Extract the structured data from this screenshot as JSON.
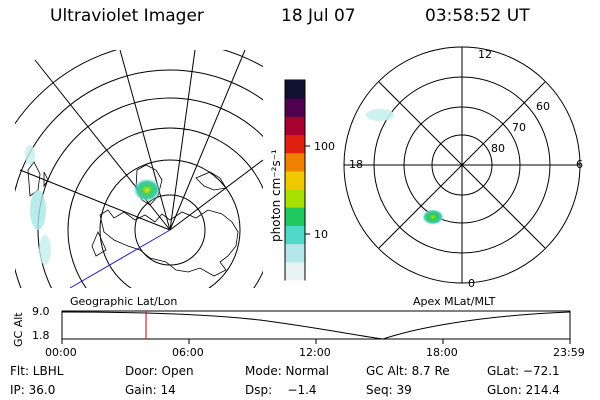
{
  "header": {
    "instrument": "Ultraviolet Imager",
    "date": "18 Jul 07",
    "time": "03:58:52 UT"
  },
  "colorbar": {
    "unit_label": "photon cm⁻²s⁻¹",
    "ticks": [
      "100",
      "10"
    ],
    "colors": [
      "#e8f4f4",
      "#b4e6ea",
      "#50d8c8",
      "#20c860",
      "#a8e000",
      "#f0c800",
      "#f08000",
      "#e02010",
      "#a80030",
      "#500050",
      "#101030"
    ]
  },
  "geo_map": {
    "caption": "Geographic Lat/Lon",
    "emission": [
      {
        "name": "main-oval-blob",
        "color": "#38d070"
      },
      {
        "name": "diffuse-arc",
        "color": "#a8e6e6"
      }
    ]
  },
  "polar_plot": {
    "caption": "Apex MLat/MLT",
    "lat_labels": [
      "60",
      "70",
      "80"
    ],
    "mlt_labels": [
      "12",
      "18",
      "6",
      "0"
    ]
  },
  "altitude_plot": {
    "axis_title": "GC Alt",
    "y_ticks": [
      "9.0",
      "1.8"
    ],
    "x_ticks": [
      "00:00",
      "06:00",
      "12:00",
      "18:00",
      "23:59"
    ],
    "current_time_marker_color": "#d00000"
  },
  "status": {
    "flt": "Flt: LBHL",
    "door": "Door: Open",
    "mode": "Mode: Normal",
    "gc_alt": "GC Alt: 8.7 Re",
    "glat": "GLat: −72.1",
    "ip": "IP: 36.0",
    "gain": "Gain: 14",
    "dsp": "Dsp:    −1.4",
    "seq": "Seq: 39",
    "glon": "GLon: 214.4"
  }
}
